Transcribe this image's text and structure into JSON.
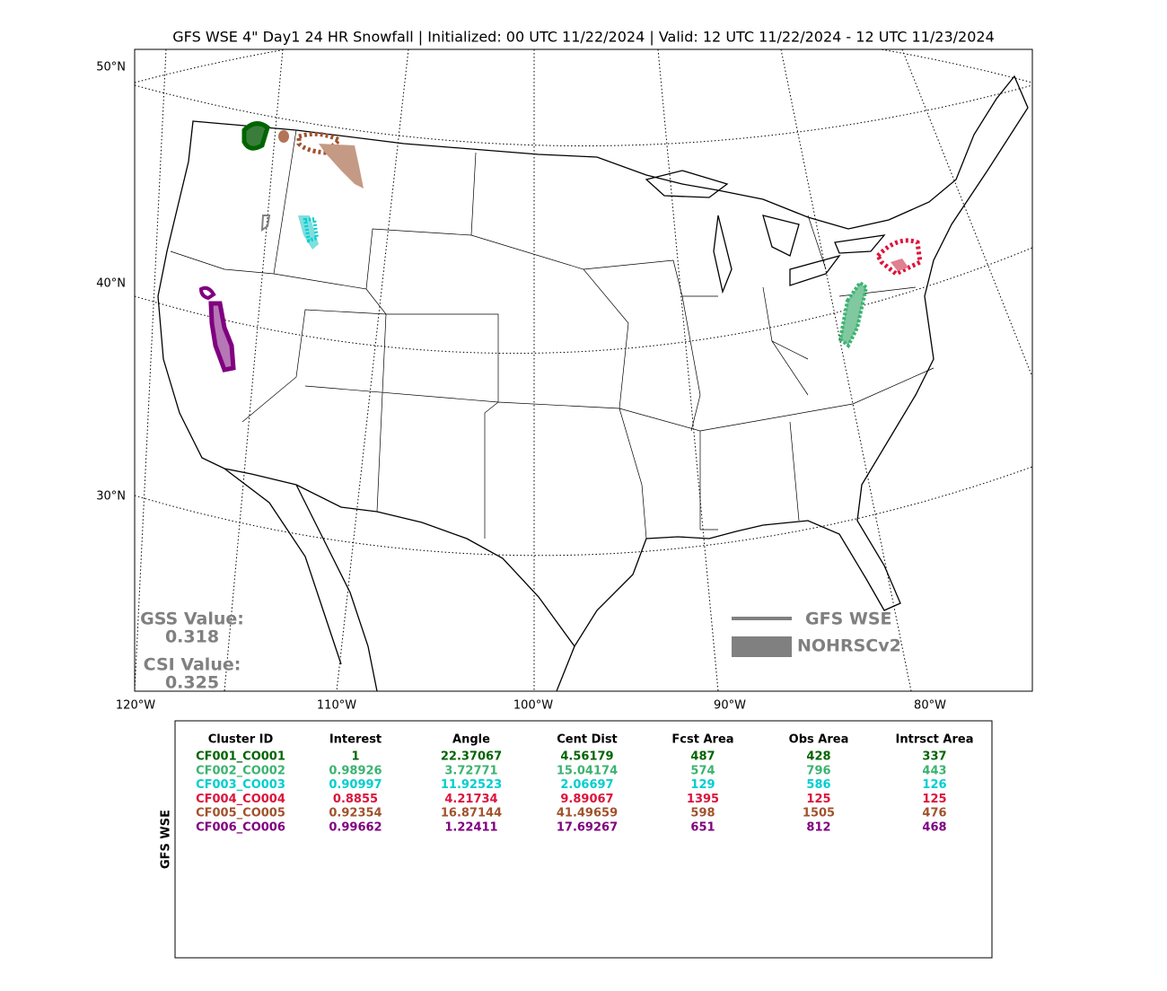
{
  "title": "GFS WSE 4\" Day1 24 HR Snowfall | Initialized: 00 UTC 11/22/2024 | Valid: 12 UTC 11/22/2024 - 12 UTC 11/23/2024",
  "map": {
    "lat_labels": [
      "50°N",
      "40°N",
      "30°N"
    ],
    "lon_labels": [
      "120°W",
      "110°W",
      "100°W",
      "90°W",
      "80°W"
    ]
  },
  "scores": [
    {
      "label": "GSS Value:",
      "value": "0.318"
    },
    {
      "label": "CSI Value:",
      "value": "0.325"
    }
  ],
  "legend": [
    "GFS WSE",
    "NOHRSCv2"
  ],
  "table": {
    "model_label": "GFS WSE",
    "columns": [
      "Cluster ID",
      "Interest",
      "Angle",
      "Cent Dist",
      "Fcst Area",
      "Obs Area",
      "Intrsct Area"
    ],
    "rows": [
      {
        "color": "#006400",
        "cells": [
          "CF001_CO001",
          "1",
          "22.37067",
          "4.56179",
          "487",
          "428",
          "337"
        ]
      },
      {
        "color": "#3cb371",
        "cells": [
          "CF002_CO002",
          "0.98926",
          "3.72771",
          "15.04174",
          "574",
          "796",
          "443"
        ]
      },
      {
        "color": "#00ced1",
        "cells": [
          "CF003_CO003",
          "0.90997",
          "11.92523",
          "2.06697",
          "129",
          "586",
          "126"
        ]
      },
      {
        "color": "#dc143c",
        "cells": [
          "CF004_CO004",
          "0.8855",
          "4.21734",
          "9.89067",
          "1395",
          "125",
          "125"
        ]
      },
      {
        "color": "#a0522d",
        "cells": [
          "CF005_CO005",
          "0.92354",
          "16.87144",
          "41.49659",
          "598",
          "1505",
          "476"
        ]
      },
      {
        "color": "#800080",
        "cells": [
          "CF006_CO006",
          "0.99662",
          "1.22411",
          "17.69267",
          "651",
          "812",
          "468"
        ]
      }
    ]
  }
}
